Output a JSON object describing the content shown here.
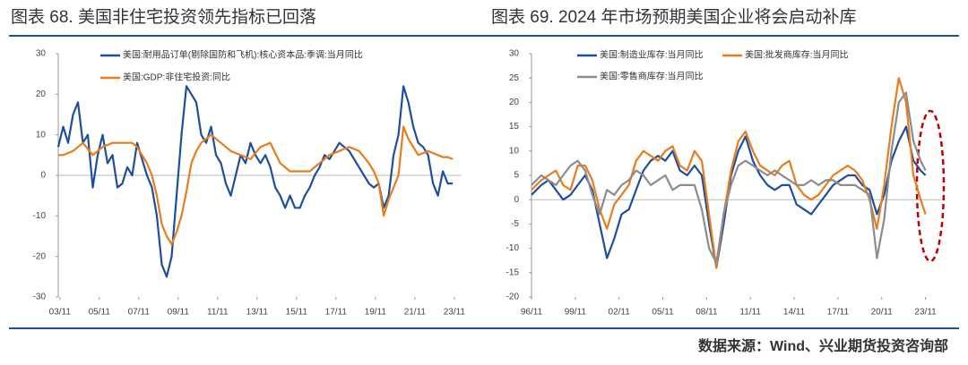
{
  "chart_data": [
    {
      "type": "line",
      "title": "图表 68. 美国非住宅投资领先指标已回落",
      "x": [
        2003.75,
        2004,
        2004.25,
        2004.5,
        2004.75,
        2005,
        2005.25,
        2005.5,
        2005.75,
        2006,
        2006.25,
        2006.5,
        2006.75,
        2007,
        2007.25,
        2007.5,
        2007.75,
        2008,
        2008.25,
        2008.5,
        2008.75,
        2009,
        2009.25,
        2009.5,
        2009.75,
        2010,
        2010.25,
        2010.5,
        2010.75,
        2011,
        2011.25,
        2011.5,
        2011.75,
        2012,
        2012.25,
        2012.5,
        2012.75,
        2013,
        2013.25,
        2013.5,
        2013.75,
        2014,
        2014.25,
        2014.5,
        2014.75,
        2015,
        2015.25,
        2015.5,
        2015.75,
        2016,
        2016.25,
        2016.5,
        2016.75,
        2017,
        2017.25,
        2017.5,
        2017.75,
        2018,
        2018.25,
        2018.5,
        2018.75,
        2019,
        2019.25,
        2019.5,
        2019.75,
        2020,
        2020.25,
        2020.5,
        2020.75,
        2021,
        2021.25,
        2021.5,
        2021.75,
        2022,
        2022.25,
        2022.5,
        2022.75,
        2023,
        2023.25,
        2023.5,
        2023.75
      ],
      "series": [
        {
          "name": "美国:耐用品订单(剔除国防和飞机):核心资本品:季调:当月同比",
          "color": "#1f4e9e",
          "values": [
            7,
            12,
            8,
            15,
            18,
            8,
            10,
            -3,
            5,
            10,
            3,
            5,
            -3,
            -2,
            2,
            0,
            8,
            4,
            0,
            -3,
            -10,
            -22,
            -25,
            -20,
            -5,
            10,
            22,
            20,
            18,
            10,
            8,
            12,
            5,
            3,
            -2,
            -5,
            0,
            5,
            3,
            8,
            5,
            3,
            5,
            2,
            -3,
            -5,
            -8,
            -5,
            -8,
            -8,
            -5,
            -3,
            0,
            2,
            5,
            4,
            6,
            8,
            7,
            6,
            4,
            2,
            0,
            -2,
            -3,
            -2,
            -8,
            -5,
            5,
            10,
            22,
            18,
            12,
            8,
            7,
            5,
            -2,
            -5,
            1,
            -2,
            -2
          ]
        },
        {
          "name": "美国:GDP:非住宅投资:同比",
          "color": "#e87d1e",
          "values": [
            5,
            5,
            5.5,
            6,
            7,
            8,
            6.5,
            5,
            6,
            7,
            7.5,
            8,
            8,
            8,
            8,
            8,
            7,
            5,
            3,
            0,
            -5,
            -12,
            -15,
            -17,
            -14,
            -10,
            -4,
            3,
            6,
            8,
            9,
            10,
            9,
            8,
            7,
            6,
            5.5,
            5,
            4.5,
            4,
            5.5,
            7,
            7.5,
            8,
            5.5,
            3,
            2,
            1,
            1,
            1,
            1,
            1,
            2,
            3,
            4,
            5,
            5.5,
            6,
            6.5,
            7,
            6.5,
            6,
            4.5,
            3,
            1,
            -2,
            -10,
            -6,
            -3,
            0,
            12,
            9,
            7,
            5,
            5.5,
            6,
            5.5,
            5,
            4.5,
            4.5,
            4
          ]
        }
      ],
      "xlim": [
        2003.75,
        2024.2
      ],
      "xticks": [
        {
          "value": 2003.83,
          "label": "03/11"
        },
        {
          "value": 2005.83,
          "label": "05/11"
        },
        {
          "value": 2007.83,
          "label": "07/11"
        },
        {
          "value": 2009.83,
          "label": "09/11"
        },
        {
          "value": 2011.83,
          "label": "11/11"
        },
        {
          "value": 2013.83,
          "label": "13/11"
        },
        {
          "value": 2015.83,
          "label": "15/11"
        },
        {
          "value": 2017.83,
          "label": "17/11"
        },
        {
          "value": 2019.83,
          "label": "19/11"
        },
        {
          "value": 2021.83,
          "label": "21/11"
        },
        {
          "value": 2023.83,
          "label": "23/11"
        }
      ],
      "ylim": [
        -30,
        30
      ],
      "yticks": [
        -30,
        -20,
        -10,
        0,
        10,
        20,
        30
      ]
    },
    {
      "type": "line",
      "title": "图表 69. 2024 年市场预期美国企业将会启动补库",
      "x": [
        1996.83,
        1997.5,
        1998,
        1998.5,
        1999,
        1999.5,
        2000,
        2000.5,
        2001,
        2001.5,
        2002,
        2002.5,
        2003,
        2003.5,
        2004,
        2004.5,
        2005,
        2005.5,
        2006,
        2006.5,
        2007,
        2007.5,
        2008,
        2008.5,
        2009,
        2009.5,
        2010,
        2010.5,
        2011,
        2011.5,
        2012,
        2012.5,
        2013,
        2013.5,
        2014,
        2014.5,
        2015,
        2015.5,
        2016,
        2016.5,
        2017,
        2017.5,
        2018,
        2018.5,
        2019,
        2019.5,
        2020,
        2020.5,
        2021,
        2021.5,
        2022,
        2022.5,
        2023,
        2023.5,
        2023.83
      ],
      "series": [
        {
          "name": "美国:制造业库存:当月同比",
          "color": "#1f4e9e",
          "values": [
            1,
            3,
            4,
            2,
            0,
            1,
            3,
            5,
            2,
            -5,
            -12,
            -8,
            -3,
            -2,
            2,
            6,
            8,
            9,
            8,
            10,
            6,
            5,
            7,
            5,
            -5,
            -14,
            -5,
            5,
            10,
            13,
            8,
            5,
            3,
            2,
            3,
            3,
            -1,
            -2,
            -3,
            -1,
            1,
            3,
            4,
            5,
            5,
            3,
            2,
            -3,
            1,
            8,
            12,
            15,
            8,
            6,
            5
          ]
        },
        {
          "name": "美国:批发商库存:当月同比",
          "color": "#e87d1e",
          "values": [
            2,
            4,
            5,
            6,
            3,
            2,
            7,
            7,
            4,
            -2,
            -6,
            -1,
            1,
            3,
            8,
            10,
            9,
            8,
            10,
            11,
            7,
            6,
            10,
            8,
            -3,
            -14,
            -3,
            6,
            12,
            14,
            10,
            7,
            6,
            5,
            7,
            8,
            3,
            1,
            0,
            1,
            3,
            5,
            6,
            7,
            6,
            4,
            0,
            -6,
            3,
            15,
            25,
            20,
            5,
            0,
            -3
          ]
        },
        {
          "name": "美国:零售商库存:当月同比",
          "color": "#8c8c8c",
          "values": [
            3,
            5,
            4,
            3,
            5,
            7,
            8,
            6,
            1,
            -3,
            2,
            1,
            3,
            4,
            6,
            5,
            3,
            4,
            5,
            2,
            3,
            3,
            3,
            -2,
            -10,
            -13,
            -3,
            3,
            7,
            8,
            7,
            6,
            5,
            6,
            5,
            4,
            3,
            3,
            4,
            3,
            4,
            4,
            3,
            3,
            3,
            2,
            1,
            -12,
            -4,
            10,
            20,
            22,
            12,
            8,
            6
          ]
        }
      ],
      "xlim": [
        1996.83,
        2024.9
      ],
      "xticks": [
        {
          "value": 1996.83,
          "label": "96/11"
        },
        {
          "value": 1999.83,
          "label": "99/11"
        },
        {
          "value": 2002.83,
          "label": "02/11"
        },
        {
          "value": 2005.83,
          "label": "05/11"
        },
        {
          "value": 2008.83,
          "label": "08/11"
        },
        {
          "value": 2011.83,
          "label": "11/11"
        },
        {
          "value": 2014.83,
          "label": "14/11"
        },
        {
          "value": 2017.83,
          "label": "17/11"
        },
        {
          "value": 2020.83,
          "label": "20/11"
        },
        {
          "value": 2023.83,
          "label": "23/11"
        }
      ],
      "ylim": [
        -20,
        30
      ],
      "yticks": [
        -20,
        -15,
        -10,
        -5,
        0,
        5,
        10,
        15,
        20,
        25,
        30
      ]
    }
  ],
  "source": "数据来源：Wind、兴业期货投资咨询部"
}
